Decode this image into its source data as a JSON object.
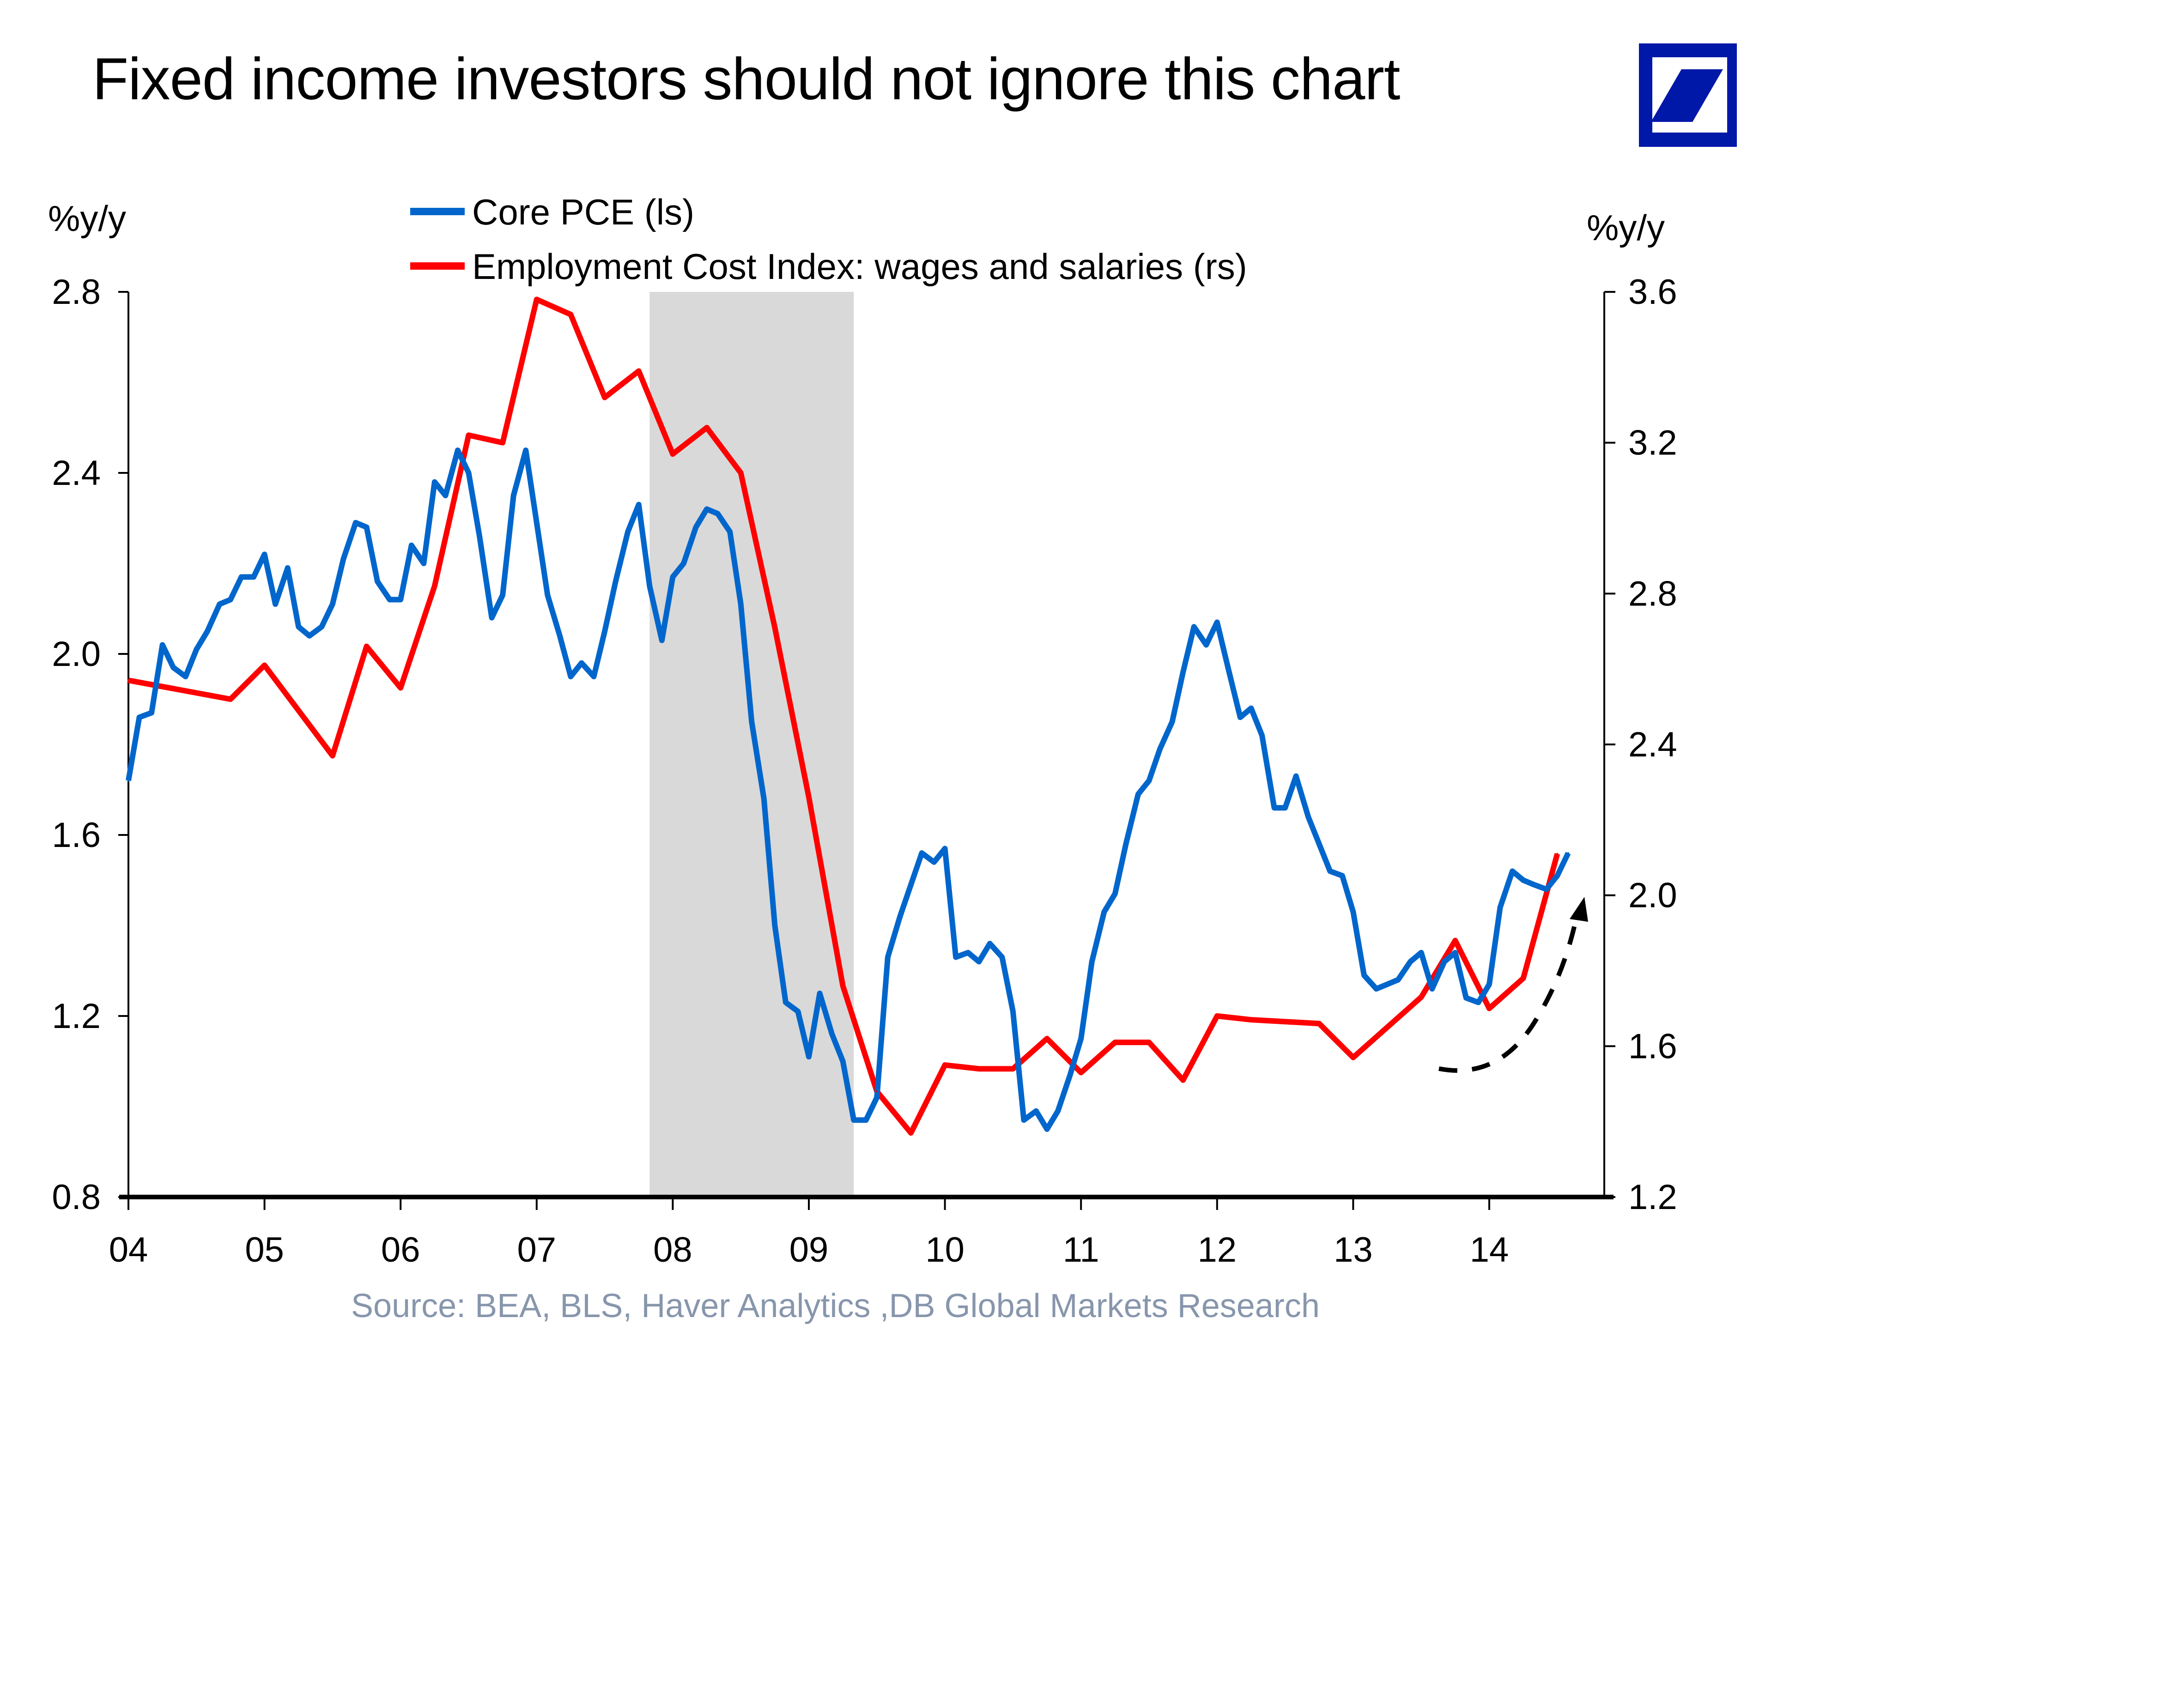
{
  "page": {
    "title": "Fixed income investors should not ignore this chart",
    "logo_name": "Deutsche Bank logo",
    "source": "Source: BEA, BLS, Haver Analytics ,DB Global Markets Research"
  },
  "colors": {
    "core_pce": "#0066cc",
    "eci": "#ff0000",
    "recession": "#d9d9d9",
    "logo": "#0018a8",
    "source_text": "#8796ac",
    "arrow": "#000000"
  },
  "chart_data": {
    "type": "line",
    "title": "Fixed income investors should not ignore this chart",
    "ylabel_left": "%y/y",
    "ylabel_right": "%y/y",
    "ylim_left": [
      0.8,
      2.8
    ],
    "ylim_right": [
      1.2,
      3.6
    ],
    "xlim": [
      2004,
      2014.8
    ],
    "yticks_left": [
      "2.8",
      "2.4",
      "2.0",
      "1.6",
      "1.2",
      "0.8"
    ],
    "yticks_left_values": [
      2.8,
      2.4,
      2.0,
      1.6,
      1.2,
      0.8
    ],
    "yticks_right": [
      "3.6",
      "3.2",
      "2.8",
      "2.4",
      "2.0",
      "1.6",
      "1.2"
    ],
    "yticks_right_values": [
      3.6,
      3.2,
      2.8,
      2.4,
      2.0,
      1.6,
      1.2
    ],
    "xticks": [
      "04",
      "05",
      "06",
      "07",
      "08",
      "09",
      "10",
      "11",
      "12",
      "13",
      "14"
    ],
    "xticks_values": [
      2004,
      2005,
      2006,
      2007,
      2008,
      2009,
      2010,
      2011,
      2012,
      2013,
      2014
    ],
    "grid": false,
    "legend_position": "top-center",
    "recession_shading": [
      2007.83,
      2009.33
    ],
    "annotation": "dashed upward arrow 2013.6–2014.6 (rising trend)",
    "series": [
      {
        "name": "Core PCE (ls)",
        "axis": "left",
        "x": [
          2004.0,
          2004.08,
          2004.17,
          2004.25,
          2004.33,
          2004.42,
          2004.5,
          2004.58,
          2004.67,
          2004.75,
          2004.83,
          2004.92,
          2005.0,
          2005.08,
          2005.17,
          2005.25,
          2005.33,
          2005.42,
          2005.5,
          2005.58,
          2005.67,
          2005.75,
          2005.83,
          2005.92,
          2006.0,
          2006.08,
          2006.17,
          2006.25,
          2006.33,
          2006.42,
          2006.5,
          2006.58,
          2006.67,
          2006.75,
          2006.83,
          2006.92,
          2007.0,
          2007.08,
          2007.17,
          2007.25,
          2007.33,
          2007.42,
          2007.5,
          2007.58,
          2007.67,
          2007.75,
          2007.83,
          2007.92,
          2008.0,
          2008.08,
          2008.17,
          2008.25,
          2008.33,
          2008.42,
          2008.5,
          2008.58,
          2008.67,
          2008.75,
          2008.83,
          2008.92,
          2009.0,
          2009.08,
          2009.17,
          2009.25,
          2009.33,
          2009.42,
          2009.5,
          2009.58,
          2009.67,
          2009.75,
          2009.83,
          2009.92,
          2010.0,
          2010.08,
          2010.17,
          2010.25,
          2010.33,
          2010.42,
          2010.5,
          2010.58,
          2010.67,
          2010.75,
          2010.83,
          2010.92,
          2011.0,
          2011.08,
          2011.17,
          2011.25,
          2011.33,
          2011.42,
          2011.5,
          2011.58,
          2011.67,
          2011.75,
          2011.83,
          2011.92,
          2012.0,
          2012.08,
          2012.17,
          2012.25,
          2012.33,
          2012.42,
          2012.5,
          2012.58,
          2012.67,
          2012.75,
          2012.83,
          2012.92,
          2013.0,
          2013.08,
          2013.17,
          2013.25,
          2013.33,
          2013.42,
          2013.5,
          2013.58,
          2013.67,
          2013.75,
          2013.83,
          2013.92,
          2014.0,
          2014.08,
          2014.17,
          2014.25,
          2014.33,
          2014.42,
          2014.5,
          2014.58
        ],
        "values": [
          1.72,
          1.86,
          1.87,
          2.02,
          1.97,
          1.95,
          2.01,
          2.05,
          2.11,
          2.12,
          2.17,
          2.17,
          2.22,
          2.11,
          2.19,
          2.06,
          2.04,
          2.06,
          2.11,
          2.21,
          2.29,
          2.28,
          2.16,
          2.12,
          2.12,
          2.24,
          2.2,
          2.38,
          2.35,
          2.45,
          2.4,
          2.26,
          2.08,
          2.13,
          2.35,
          2.45,
          2.29,
          2.13,
          2.04,
          1.95,
          1.98,
          1.95,
          2.05,
          2.16,
          2.27,
          2.33,
          2.15,
          2.03,
          2.17,
          2.2,
          2.28,
          2.32,
          2.31,
          2.27,
          2.11,
          1.85,
          1.68,
          1.4,
          1.23,
          1.21,
          1.11,
          1.25,
          1.16,
          1.1,
          0.97,
          0.97,
          1.02,
          1.33,
          1.42,
          1.49,
          1.56,
          1.54,
          1.57,
          1.33,
          1.34,
          1.32,
          1.36,
          1.33,
          1.21,
          0.97,
          0.99,
          0.95,
          0.99,
          1.07,
          1.15,
          1.32,
          1.43,
          1.47,
          1.58,
          1.69,
          1.72,
          1.79,
          1.85,
          1.96,
          2.06,
          2.02,
          2.07,
          1.97,
          1.86,
          1.88,
          1.82,
          1.66,
          1.66,
          1.73,
          1.64,
          1.58,
          1.52,
          1.51,
          1.43,
          1.29,
          1.26,
          1.27,
          1.28,
          1.32,
          1.34,
          1.26,
          1.32,
          1.34,
          1.24,
          1.23,
          1.27,
          1.44,
          1.52,
          1.5,
          1.49,
          1.48,
          1.51,
          1.56
        ]
      },
      {
        "name": "Employment Cost Index: wages and salaries (rs)",
        "axis": "right",
        "x": [
          2004.0,
          2004.75,
          2005.0,
          2005.5,
          2005.75,
          2006.0,
          2006.25,
          2006.5,
          2006.75,
          2007.0,
          2007.25,
          2007.5,
          2007.75,
          2008.0,
          2008.25,
          2008.5,
          2008.75,
          2009.0,
          2009.25,
          2009.5,
          2009.75,
          2010.0,
          2010.25,
          2010.5,
          2010.75,
          2011.0,
          2011.25,
          2011.5,
          2011.75,
          2012.0,
          2012.25,
          2012.75,
          2013.0,
          2013.5,
          2013.75,
          2014.0,
          2014.25,
          2014.5
        ],
        "values": [
          2.57,
          2.52,
          2.61,
          2.37,
          2.66,
          2.55,
          2.82,
          3.22,
          3.2,
          3.58,
          3.54,
          3.32,
          3.39,
          3.17,
          3.24,
          3.12,
          2.71,
          2.26,
          1.76,
          1.48,
          1.37,
          1.55,
          1.54,
          1.54,
          1.62,
          1.53,
          1.61,
          1.61,
          1.51,
          1.68,
          1.67,
          1.66,
          1.57,
          1.73,
          1.88,
          1.7,
          1.78,
          2.11
        ]
      }
    ]
  }
}
